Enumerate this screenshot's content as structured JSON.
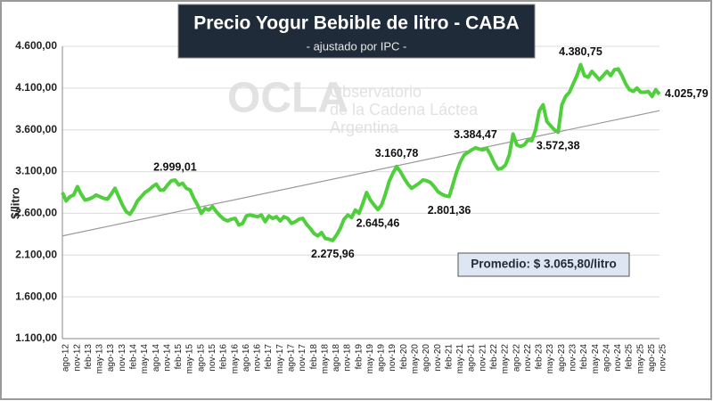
{
  "chart_data": {
    "type": "line",
    "title": "Precio Yogur Bebible de litro - CABA",
    "subtitle": "- ajustado por IPC -",
    "y_label": "$/litro",
    "watermark": {
      "logo": "OCLA",
      "lines": [
        "Observatorio",
        "de la Cadena Láctea",
        "Argentina"
      ]
    },
    "average_label": "Promedio: $ 3.065,80/litro",
    "ylim": [
      1100,
      4600
    ],
    "yticks": [
      {
        "value": 1100,
        "label": "1.100,00"
      },
      {
        "value": 1600,
        "label": "1.600,00"
      },
      {
        "value": 2100,
        "label": "2.100,00"
      },
      {
        "value": 2600,
        "label": "2.600,00"
      },
      {
        "value": 3100,
        "label": "3.100,00"
      },
      {
        "value": 3600,
        "label": "3.600,00"
      },
      {
        "value": 4100,
        "label": "4.100,00"
      },
      {
        "value": 4600,
        "label": "4.600,00"
      }
    ],
    "grid": true,
    "trendline": {
      "start": 2330,
      "end": 3830,
      "color": "#9a9a9a"
    },
    "categories": [
      "ago-12",
      null,
      null,
      "nov-12",
      null,
      null,
      "feb-13",
      null,
      null,
      "may-13",
      null,
      null,
      "ago-13",
      null,
      null,
      "nov-13",
      null,
      null,
      "feb-14",
      null,
      null,
      "may-14",
      null,
      null,
      "ago-14",
      null,
      null,
      "nov-14",
      null,
      null,
      "feb-15",
      null,
      null,
      "may-15",
      null,
      null,
      "ago-15",
      null,
      null,
      "nov-15",
      null,
      null,
      "feb-16",
      null,
      null,
      "may-16",
      null,
      null,
      "ago-16",
      null,
      null,
      "nov-16",
      null,
      null,
      "feb-17",
      null,
      null,
      "may-17",
      null,
      null,
      "ago-17",
      null,
      null,
      "nov-17",
      null,
      null,
      "feb-18",
      null,
      null,
      "may-18",
      null,
      null,
      "ago-18",
      null,
      null,
      "nov-18",
      null,
      null,
      "feb-19",
      null,
      null,
      "may-19",
      null,
      null,
      "ago-19",
      null,
      null,
      "nov-19",
      null,
      null,
      "feb-20",
      null,
      null,
      "may-20",
      null,
      null,
      "ago-20",
      null,
      null,
      "nov-20",
      null,
      null,
      "feb-21",
      null,
      null,
      "may-21",
      null,
      null,
      "ago-21",
      null,
      null,
      "nov-21",
      null,
      null,
      "feb-22",
      null,
      null,
      "may-22",
      null,
      null,
      "ago-22",
      null,
      null,
      "nov-22",
      null,
      null,
      "feb-23",
      null,
      null,
      "may-23",
      null,
      null,
      "ago-23",
      null,
      null,
      "nov-23",
      null,
      null,
      "feb-24",
      null,
      null,
      "may-24",
      null,
      null,
      "ago-24",
      null,
      null,
      "nov-24",
      null,
      null,
      "feb-25",
      null,
      null,
      "may-25",
      null,
      null,
      "ago-25",
      null,
      null,
      "nov-25"
    ],
    "series": [
      {
        "name": "Precio",
        "color": "#4fcf3c",
        "values": [
          2850,
          2750,
          2800,
          2820,
          2920,
          2830,
          2760,
          2770,
          2790,
          2820,
          2800,
          2780,
          2770,
          2830,
          2900,
          2800,
          2700,
          2620,
          2590,
          2660,
          2750,
          2800,
          2850,
          2880,
          2920,
          2950,
          2880,
          2880,
          2940,
          2990,
          2999.01,
          2940,
          2960,
          2900,
          2880,
          2780,
          2700,
          2600,
          2660,
          2640,
          2680,
          2620,
          2570,
          2530,
          2510,
          2530,
          2540,
          2460,
          2480,
          2570,
          2580,
          2570,
          2560,
          2580,
          2500,
          2570,
          2540,
          2560,
          2510,
          2560,
          2540,
          2480,
          2500,
          2530,
          2540,
          2470,
          2420,
          2360,
          2330,
          2370,
          2300,
          2290,
          2275.96,
          2340,
          2420,
          2530,
          2580,
          2550,
          2640,
          2600,
          2720,
          2850,
          2760,
          2700,
          2645.46,
          2700,
          2830,
          2980,
          3080,
          3160.78,
          3100,
          3020,
          2950,
          2900,
          2930,
          2960,
          3000,
          2990,
          2970,
          2920,
          2860,
          2830,
          2810,
          2801.36,
          2950,
          3100,
          3220,
          3300,
          3330,
          3360,
          3384.47,
          3370,
          3360,
          3380,
          3300,
          3200,
          3130,
          3140,
          3180,
          3300,
          3550,
          3420,
          3400,
          3420,
          3480,
          3470,
          3600,
          3830,
          3900,
          3700,
          3650,
          3600,
          3572.38,
          3900,
          4000,
          4050,
          4150,
          4250,
          4380.75,
          4250,
          4230,
          4300,
          4250,
          4200,
          4250,
          4300,
          4250,
          4320,
          4330,
          4250,
          4150,
          4080,
          4060,
          4100,
          4050,
          4050,
          4060,
          4000,
          4080,
          4025.79
        ],
        "value_labels": [
          null,
          null,
          null,
          null,
          null,
          null,
          null,
          null,
          null,
          null,
          null,
          null,
          null,
          null,
          null,
          null,
          null,
          null,
          null,
          null,
          null,
          null,
          null,
          null,
          null,
          null,
          null,
          null,
          null,
          null,
          "2.999,01",
          null,
          null,
          null,
          null,
          null,
          null,
          null,
          null,
          null,
          null,
          null,
          null,
          null,
          null,
          null,
          null,
          null,
          null,
          null,
          null,
          null,
          null,
          null,
          null,
          null,
          null,
          null,
          null,
          null,
          null,
          null,
          null,
          null,
          null,
          null,
          null,
          null,
          null,
          null,
          null,
          null,
          "2.275,96",
          null,
          null,
          null,
          null,
          null,
          null,
          null,
          null,
          null,
          null,
          null,
          "2.645,46",
          null,
          null,
          null,
          null,
          "3.160,78",
          null,
          null,
          null,
          null,
          null,
          null,
          null,
          null,
          null,
          null,
          null,
          null,
          null,
          "2.801,36",
          null,
          null,
          null,
          null,
          null,
          null,
          "3.384,47",
          null,
          null,
          null,
          null,
          null,
          null,
          null,
          null,
          null,
          null,
          null,
          null,
          null,
          null,
          null,
          null,
          null,
          null,
          null,
          null,
          null,
          "3.572,38",
          null,
          null,
          null,
          null,
          null,
          "4.380,75",
          null,
          null,
          null,
          null,
          null,
          null,
          null,
          null,
          null,
          null,
          null,
          null,
          null,
          null,
          null,
          null,
          null,
          null,
          null,
          null,
          "4.025,79"
        ]
      }
    ]
  }
}
